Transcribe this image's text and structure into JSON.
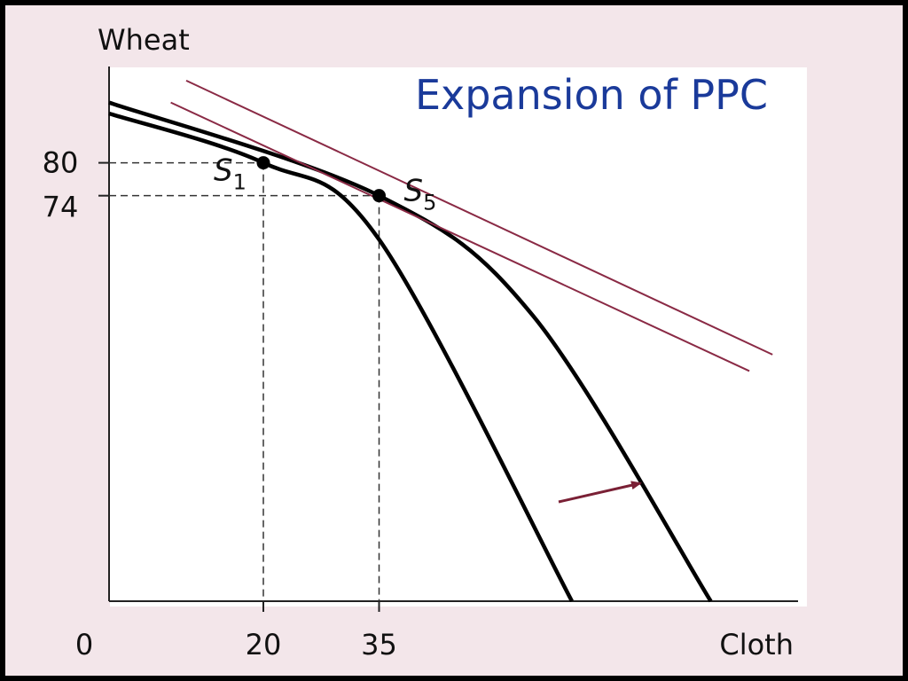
{
  "chart_data": {
    "type": "line",
    "title": "Expansion of PPC",
    "xlabel": "Cloth",
    "ylabel": "Wheat",
    "origin_label": "0",
    "x_ticks": [
      "20",
      "35"
    ],
    "y_ticks": [
      "80",
      "74"
    ],
    "points": [
      {
        "label": "S",
        "sub": "1",
        "x": 20,
        "y": 80
      },
      {
        "label": "S",
        "sub": "5",
        "x": 35,
        "y": 74
      }
    ],
    "series": [
      {
        "values": [
          [
            0,
            89
          ],
          [
            20,
            80
          ],
          [
            35,
            66
          ],
          [
            60,
            0
          ]
        ]
      },
      {
        "values": [
          [
            0,
            91
          ],
          [
            35,
            74
          ],
          [
            55,
            52
          ],
          [
            78,
            0
          ]
        ]
      }
    ],
    "price_lines": [
      {
        "values": [
          [
            8,
            91
          ],
          [
            83,
            42
          ]
        ]
      },
      {
        "values": [
          [
            10,
            95
          ],
          [
            86,
            45
          ]
        ]
      }
    ],
    "annotation": "shift-arrow",
    "colors": {
      "curve": "#000000",
      "price_line": "#8a2a45",
      "arrow": "#7a2035",
      "title": "#1a3a9a",
      "background": "#f3e6ea"
    }
  }
}
